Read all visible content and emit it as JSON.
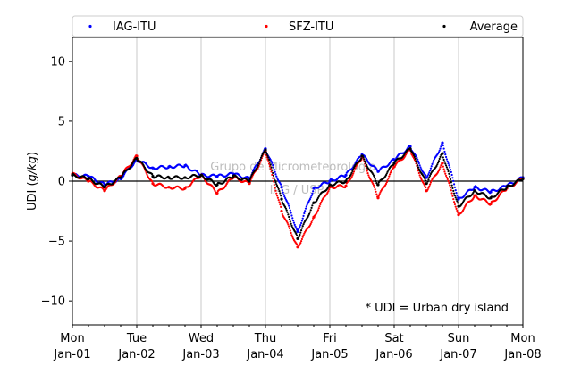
{
  "chart_data": {
    "type": "scatter",
    "ylabel_prefix": "UDI (",
    "ylabel_unit": "g/kg",
    "ylabel_suffix": ")",
    "xlim": [
      0,
      7
    ],
    "ylim": [
      -12,
      12
    ],
    "yticks": [
      -10,
      -5,
      0,
      5,
      10
    ],
    "x_ticks": [
      {
        "x": 0,
        "day": "Mon",
        "date": "Jan-01"
      },
      {
        "x": 1,
        "day": "Tue",
        "date": "Jan-02"
      },
      {
        "x": 2,
        "day": "Wed",
        "date": "Jan-03"
      },
      {
        "x": 3,
        "day": "Thu",
        "date": "Jan-04"
      },
      {
        "x": 4,
        "day": "Fri",
        "date": "Jan-05"
      },
      {
        "x": 5,
        "day": "Sat",
        "date": "Jan-06"
      },
      {
        "x": 6,
        "day": "Sun",
        "date": "Jan-07"
      },
      {
        "x": 7,
        "day": "Mon",
        "date": "Jan-08"
      }
    ],
    "grid": "vertical",
    "zero_line": true,
    "legend_position": "top",
    "watermark": [
      "Grupo de Micrometeorologia",
      "IAG / USP"
    ],
    "annotation": "* UDI = Urban dry island",
    "series": [
      {
        "name": "IAG-ITU",
        "color": "#0000ff",
        "x": [
          0.0,
          0.25,
          0.5,
          0.75,
          1.0,
          1.25,
          1.5,
          1.75,
          2.0,
          2.25,
          2.5,
          2.75,
          3.0,
          3.25,
          3.5,
          3.75,
          4.0,
          4.25,
          4.5,
          4.75,
          5.0,
          5.25,
          5.5,
          5.75,
          6.0,
          6.25,
          6.5,
          6.75,
          7.0
        ],
        "y": [
          0.5,
          0.4,
          -0.3,
          0.2,
          1.8,
          1.1,
          1.2,
          1.3,
          0.5,
          0.4,
          0.6,
          0.2,
          2.7,
          -0.5,
          -4.2,
          -0.6,
          0.0,
          0.5,
          2.2,
          0.8,
          1.8,
          2.9,
          0.3,
          3.2,
          -1.5,
          -0.5,
          -0.9,
          -0.4,
          0.3
        ]
      },
      {
        "name": "SFZ-ITU",
        "color": "#ff0000",
        "x": [
          0.0,
          0.25,
          0.5,
          0.75,
          1.0,
          1.25,
          1.5,
          1.75,
          2.0,
          2.25,
          2.5,
          2.75,
          3.0,
          3.25,
          3.5,
          3.75,
          4.0,
          4.25,
          4.5,
          4.75,
          5.0,
          5.25,
          5.5,
          5.75,
          6.0,
          6.25,
          6.5,
          6.75,
          7.0
        ],
        "y": [
          0.6,
          0.0,
          -0.8,
          0.4,
          2.1,
          -0.2,
          -0.5,
          -0.6,
          0.5,
          -1.0,
          0.3,
          -0.2,
          2.5,
          -2.5,
          -5.5,
          -3.0,
          -0.5,
          -0.4,
          2.0,
          -1.4,
          1.2,
          2.6,
          -0.8,
          1.5,
          -2.8,
          -1.2,
          -1.9,
          -0.6,
          0.2
        ]
      },
      {
        "name": "Average",
        "color": "#000000",
        "x": [
          0.0,
          0.25,
          0.5,
          0.75,
          1.0,
          1.25,
          1.5,
          1.75,
          2.0,
          2.25,
          2.5,
          2.75,
          3.0,
          3.25,
          3.5,
          3.75,
          4.0,
          4.25,
          4.5,
          4.75,
          5.0,
          5.25,
          5.5,
          5.75,
          6.0,
          6.25,
          6.5,
          6.75,
          7.0
        ],
        "y": [
          0.5,
          0.2,
          -0.5,
          0.3,
          1.9,
          0.4,
          0.3,
          0.3,
          0.5,
          -0.3,
          0.4,
          0.0,
          2.6,
          -1.5,
          -4.8,
          -1.8,
          -0.3,
          0.0,
          2.1,
          -0.3,
          1.5,
          2.7,
          -0.2,
          2.3,
          -2.1,
          -0.8,
          -1.4,
          -0.5,
          0.2
        ]
      }
    ]
  }
}
